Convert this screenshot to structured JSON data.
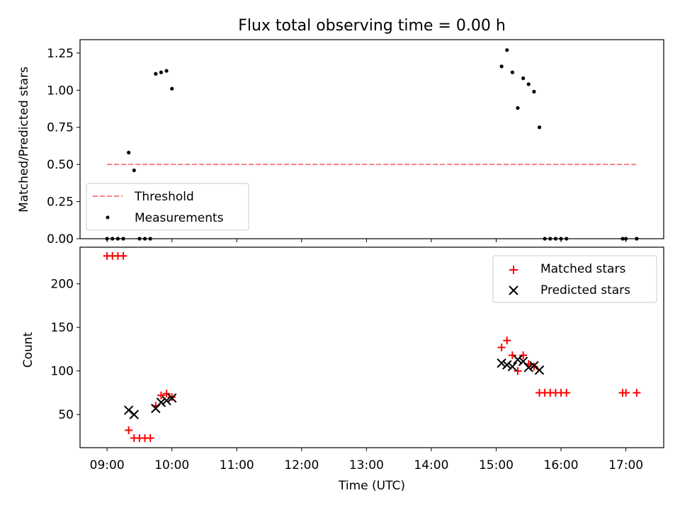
{
  "chart_data": [
    {
      "type": "scatter",
      "title": "Flux total observing time = 0.00 h",
      "xlabel": "",
      "ylabel": "Matched/Predicted stars",
      "xlim": [
        "08:35",
        "17:35"
      ],
      "ylim": [
        0.0,
        1.34
      ],
      "yticks": [
        "0.00",
        "0.25",
        "0.50",
        "0.75",
        "1.00",
        "1.25"
      ],
      "xticks": [
        "09:00",
        "10:00",
        "11:00",
        "12:00",
        "13:00",
        "14:00",
        "15:00",
        "16:00",
        "17:00"
      ],
      "grid": false,
      "legend_position": "lower-left",
      "series": [
        {
          "name": "Threshold",
          "style": "dashed-line",
          "color": "#ff7f7f",
          "x": [
            "09:00",
            "17:10"
          ],
          "y": [
            0.5,
            0.5
          ]
        },
        {
          "name": "Measurements",
          "style": "dot",
          "color": "#000000",
          "x": [
            "09:00",
            "09:05",
            "09:10",
            "09:15",
            "09:20",
            "09:25",
            "09:30",
            "09:35",
            "09:40",
            "09:45",
            "09:50",
            "09:55",
            "10:00",
            "15:05",
            "15:10",
            "15:15",
            "15:20",
            "15:25",
            "15:30",
            "15:35",
            "15:40",
            "15:45",
            "15:50",
            "15:55",
            "16:00",
            "16:05",
            "16:57",
            "17:00",
            "17:10"
          ],
          "y": [
            0.0,
            0.0,
            0.0,
            0.0,
            0.58,
            0.46,
            0.0,
            0.0,
            0.0,
            1.11,
            1.12,
            1.13,
            1.01,
            1.16,
            1.27,
            1.12,
            0.88,
            1.08,
            1.04,
            0.99,
            0.75,
            0.0,
            0.0,
            0.0,
            0.0,
            0.0,
            0.0,
            0.0,
            0.0
          ]
        }
      ]
    },
    {
      "type": "scatter",
      "title": "",
      "xlabel": "Time (UTC)",
      "ylabel": "Count",
      "xlim": [
        "08:35",
        "17:35"
      ],
      "ylim": [
        12,
        242
      ],
      "yticks": [
        "50",
        "100",
        "150",
        "200"
      ],
      "xticks": [
        "09:00",
        "10:00",
        "11:00",
        "12:00",
        "13:00",
        "14:00",
        "15:00",
        "16:00",
        "17:00"
      ],
      "grid": false,
      "legend_position": "top-right",
      "series": [
        {
          "name": "Matched stars",
          "marker": "plus",
          "color": "#ff0000",
          "x": [
            "09:00",
            "09:05",
            "09:10",
            "09:15",
            "09:20",
            "09:25",
            "09:30",
            "09:35",
            "09:40",
            "09:45",
            "09:50",
            "09:55",
            "10:00",
            "15:05",
            "15:10",
            "15:15",
            "15:20",
            "15:25",
            "15:30",
            "15:35",
            "15:40",
            "15:45",
            "15:50",
            "15:55",
            "16:00",
            "16:05",
            "16:57",
            "17:00",
            "17:10"
          ],
          "y": [
            232,
            232,
            232,
            232,
            32,
            23,
            23,
            23,
            23,
            60,
            72,
            74,
            70,
            127,
            135,
            118,
            100,
            118,
            108,
            105,
            75,
            75,
            75,
            75,
            75,
            75,
            75,
            75,
            75
          ]
        },
        {
          "name": "Predicted stars",
          "marker": "x",
          "color": "#000000",
          "x": [
            "09:20",
            "09:25",
            "09:45",
            "09:50",
            "09:55",
            "10:00",
            "15:05",
            "15:10",
            "15:15",
            "15:20",
            "15:25",
            "15:30",
            "15:35",
            "15:40"
          ],
          "y": [
            55,
            50,
            57,
            64,
            66,
            69,
            109,
            107,
            105,
            113,
            111,
            104,
            106,
            101
          ]
        }
      ]
    }
  ]
}
